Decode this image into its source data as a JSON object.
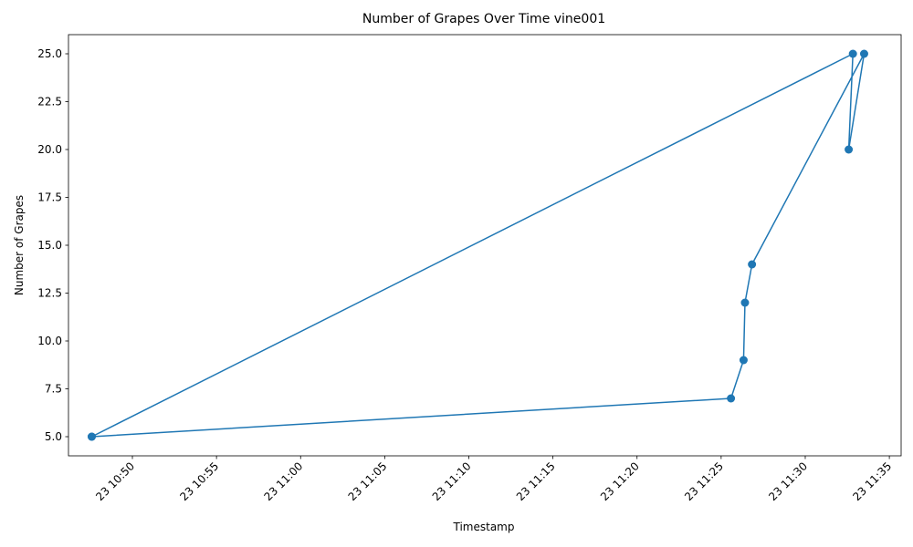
{
  "chart_data": {
    "type": "line",
    "title": "Number of Grapes Over Time vine001",
    "xlabel": "Timestamp",
    "ylabel": "Number of Grapes",
    "x_type": "time",
    "xlim": [
      "23 10:46:12",
      "23 11:35:42"
    ],
    "ylim": [
      4.0,
      26.0
    ],
    "x_ticks": [
      "23 10:50",
      "23 10:55",
      "23 11:00",
      "23 11:05",
      "23 11:10",
      "23 11:15",
      "23 11:20",
      "23 11:25",
      "23 11:30",
      "23 11:35"
    ],
    "y_ticks": [
      "5.0",
      "7.5",
      "10.0",
      "12.5",
      "15.0",
      "17.5",
      "20.0",
      "22.5",
      "25.0"
    ],
    "grid": false,
    "legend": "none",
    "color": "#1f77b4",
    "series": [
      {
        "x": [
          "23 10:47:35",
          "23 11:32:50",
          "23 11:32:35",
          "23 11:33:30",
          "23 11:26:50",
          "23 11:26:25",
          "23 11:26:20",
          "23 11:25:35",
          "23 10:47:35"
        ],
        "y": [
          5,
          25,
          20,
          25,
          14,
          12,
          9,
          7,
          5
        ]
      }
    ]
  }
}
